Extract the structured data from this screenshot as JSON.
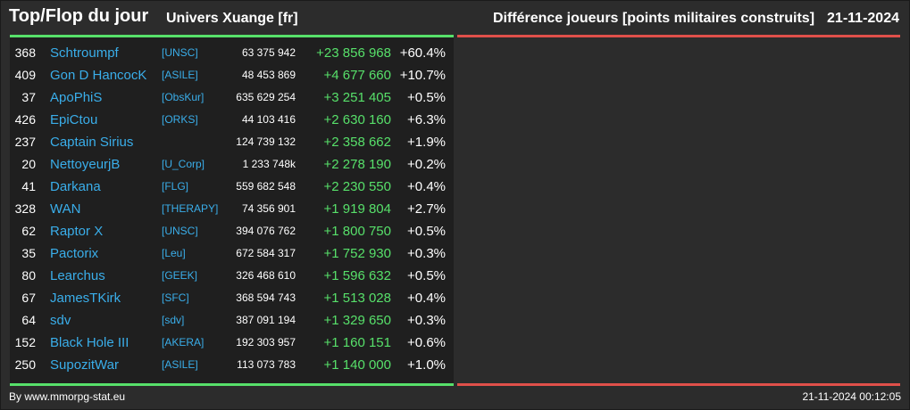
{
  "header": {
    "title": "Top/Flop du jour",
    "universe": "Univers Xuange [fr]",
    "subtitle": "Différence joueurs [points militaires construits]",
    "date": "21-11-2024"
  },
  "colors": {
    "background": "#2c2c2c",
    "panel": "#1f1f1f",
    "top_bar": "#57e06a",
    "flop_bar": "#e0504a",
    "name_link": "#3aaeea",
    "positive_diff": "#57e06a"
  },
  "top_rows": [
    {
      "rank": "368",
      "name": "Schtroumpf",
      "alliance": "[UNSC]",
      "points": "63 375 942",
      "diff": "+23 856 968",
      "pct": "+60.4%"
    },
    {
      "rank": "409",
      "name": "Gon D HancocK",
      "alliance": "[ASILE]",
      "points": "48 453 869",
      "diff": "+4 677 660",
      "pct": "+10.7%"
    },
    {
      "rank": "37",
      "name": "ApoPhiS",
      "alliance": "[ObsKur]",
      "points": "635 629 254",
      "diff": "+3 251 405",
      "pct": "+0.5%"
    },
    {
      "rank": "426",
      "name": "EpiCtou",
      "alliance": "[ORKS]",
      "points": "44 103 416",
      "diff": "+2 630 160",
      "pct": "+6.3%"
    },
    {
      "rank": "237",
      "name": "Captain Sirius",
      "alliance": "",
      "points": "124 739 132",
      "diff": "+2 358 662",
      "pct": "+1.9%"
    },
    {
      "rank": "20",
      "name": "NettoyeurjB",
      "alliance": "[U_Corp]",
      "points": "1 233 748k",
      "diff": "+2 278 190",
      "pct": "+0.2%"
    },
    {
      "rank": "41",
      "name": "Darkana",
      "alliance": "[FLG]",
      "points": "559 682 548",
      "diff": "+2 230 550",
      "pct": "+0.4%"
    },
    {
      "rank": "328",
      "name": "WAN",
      "alliance": "[THERAPY]",
      "points": "74 356 901",
      "diff": "+1 919 804",
      "pct": "+2.7%"
    },
    {
      "rank": "62",
      "name": "Raptor X",
      "alliance": "[UNSC]",
      "points": "394 076 762",
      "diff": "+1 800 750",
      "pct": "+0.5%"
    },
    {
      "rank": "35",
      "name": "Pactorix",
      "alliance": "[Leu]",
      "points": "672 584 317",
      "diff": "+1 752 930",
      "pct": "+0.3%"
    },
    {
      "rank": "80",
      "name": "Learchus",
      "alliance": "[GEEK]",
      "points": "326 468 610",
      "diff": "+1 596 632",
      "pct": "+0.5%"
    },
    {
      "rank": "67",
      "name": "JamesTKirk",
      "alliance": "[SFC]",
      "points": "368 594 743",
      "diff": "+1 513 028",
      "pct": "+0.4%"
    },
    {
      "rank": "64",
      "name": "sdv",
      "alliance": "[sdv]",
      "points": "387 091 194",
      "diff": "+1 329 650",
      "pct": "+0.3%"
    },
    {
      "rank": "152",
      "name": "Black Hole III",
      "alliance": "[AKERA]",
      "points": "192 303 957",
      "diff": "+1 160 151",
      "pct": "+0.6%"
    },
    {
      "rank": "250",
      "name": "SupozitWar",
      "alliance": "[ASILE]",
      "points": "113 073 783",
      "diff": "+1 140 000",
      "pct": "+1.0%"
    }
  ],
  "footer": {
    "source": "By www.mmorpg-stat.eu",
    "timestamp": "21-11-2024 00:12:05"
  }
}
